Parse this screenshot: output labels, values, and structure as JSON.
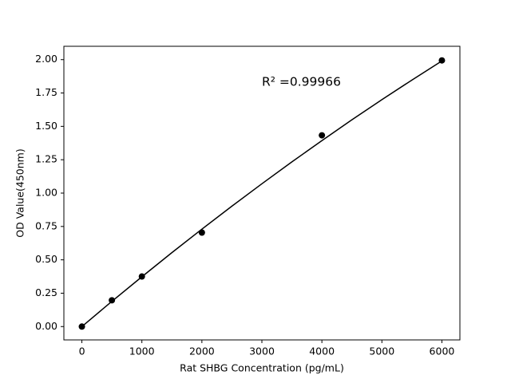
{
  "chart_data": {
    "type": "scatter",
    "x_label": "Rat SHBG Concentration (pg/mL)",
    "y_label": "OD Value(450nm)",
    "annotation": "R² =0.99966",
    "xlim": [
      -300,
      6300
    ],
    "ylim": [
      -0.1,
      2.1
    ],
    "xticks": [
      0,
      1000,
      2000,
      3000,
      4000,
      5000,
      6000
    ],
    "yticks": [
      {
        "value": 0,
        "label": "0.00"
      },
      {
        "value": 0.25,
        "label": "0.25"
      },
      {
        "value": 0.5,
        "label": "0.50"
      },
      {
        "value": 0.75,
        "label": "0.75"
      },
      {
        "value": 1,
        "label": "1.00"
      },
      {
        "value": 1.25,
        "label": "1.25"
      },
      {
        "value": 1.5,
        "label": "1.50"
      },
      {
        "value": 1.75,
        "label": "1.75"
      },
      {
        "value": 2,
        "label": "2.00"
      }
    ],
    "series": [
      {
        "mode": "line",
        "color": "#000000",
        "x": [
          0,
          500,
          1000,
          1500,
          2000,
          2500,
          3000,
          3500,
          4000,
          4500,
          5000,
          5500,
          6000
        ],
        "values": [
          0,
          0.189,
          0.373,
          0.554,
          0.73,
          0.902,
          1.07,
          1.234,
          1.393,
          1.549,
          1.7,
          1.847,
          1.99
        ]
      },
      {
        "mode": "markers",
        "color": "#000000",
        "x": [
          0,
          500,
          1000,
          2000,
          4000,
          6000
        ],
        "values": [
          0,
          0.197,
          0.375,
          0.704,
          1.433,
          1.994
        ]
      }
    ]
  }
}
